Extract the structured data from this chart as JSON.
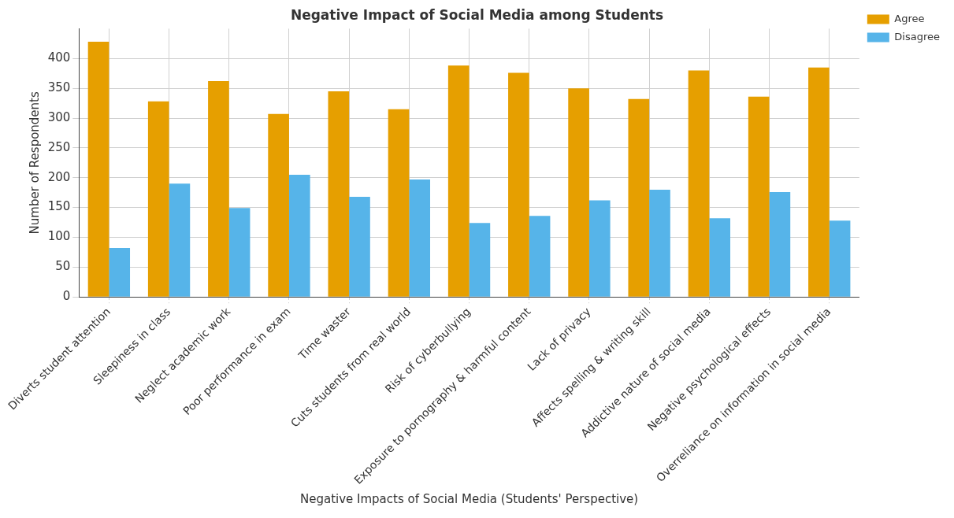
{
  "chart_data": {
    "type": "bar",
    "title": "Negative Impact of Social Media among Students",
    "xlabel": "Negative Impacts of Social Media (Students' Perspective)",
    "ylabel": "Number of Respondents",
    "categories": [
      "Diverts student attention",
      "Sleepiness in class",
      "Neglect academic work",
      "Poor performance in exam",
      "Time waster",
      "Cuts students from real world",
      "Risk of cyberbullying",
      "Exposure to pornography & harmful content",
      "Lack of privacy",
      "Affects spelling & writing skill",
      "Addictive nature of social media",
      "Negative psychological effects",
      "Overreliance on information in social media"
    ],
    "series": [
      {
        "name": "Agree",
        "color": "#e69f00",
        "values": [
          428,
          328,
          362,
          307,
          345,
          315,
          388,
          376,
          350,
          332,
          380,
          336,
          385
        ]
      },
      {
        "name": "Disagree",
        "color": "#56b4e9",
        "values": [
          82,
          190,
          149,
          205,
          168,
          197,
          124,
          136,
          162,
          180,
          132,
          176,
          128
        ]
      }
    ],
    "ylim": [
      0,
      450
    ],
    "yticks": [
      0,
      50,
      100,
      150,
      200,
      250,
      300,
      350,
      400
    ],
    "grid": true,
    "legend": "top right"
  }
}
